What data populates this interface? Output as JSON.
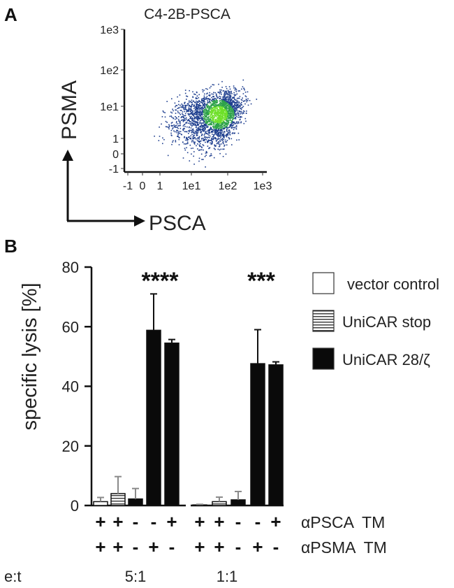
{
  "panels": {
    "a": "A",
    "b": "B"
  },
  "scatter": {
    "title": "C4-2B-PSCA",
    "xaxis_name": "PSCA",
    "yaxis_name": "PSMA",
    "xticks": [
      "-1",
      "0",
      "1",
      "1e1",
      "1e2",
      "1e3"
    ],
    "yticks": [
      "1e3",
      "1e2",
      "1e1",
      "1",
      "0",
      "-1"
    ],
    "colors": {
      "outer": "#1f3f8f",
      "inner": "#2ea24a",
      "core": "#6fe02a"
    }
  },
  "chart_data": [
    {
      "type": "scatter",
      "title": "C4-2B-PSCA",
      "xlabel": "PSCA",
      "ylabel": "PSMA",
      "xscale": "log",
      "yscale": "log",
      "xticks": [
        "-1",
        "0",
        "1",
        "1e1",
        "1e2",
        "1e3"
      ],
      "yticks": [
        "-1",
        "0",
        "1",
        "1e1",
        "1e2",
        "1e3"
      ],
      "density_center": {
        "x": 50,
        "y": 10
      }
    },
    {
      "type": "bar",
      "ylabel": "specific lysis [%]",
      "ylim": [
        0,
        80
      ],
      "yticks": [
        "0",
        "20",
        "40",
        "60",
        "80"
      ],
      "groups": [
        {
          "label": "5:1",
          "significance": "****",
          "bars": [
            {
              "series": "vector control",
              "value": 1.3,
              "error": 1.4,
              "apsca": "+",
              "apsma": "+"
            },
            {
              "series": "UniCAR stop",
              "value": 4.0,
              "error": 5.7,
              "apsca": "+",
              "apsma": "+"
            },
            {
              "series": "UniCAR 28/ζ",
              "value": 2.2,
              "error": 3.5,
              "apsca": "-",
              "apsma": "-"
            },
            {
              "series": "UniCAR 28/ζ",
              "value": 58.8,
              "error": 12.2,
              "apsca": "-",
              "apsma": "+"
            },
            {
              "series": "UniCAR 28/ζ",
              "value": 54.5,
              "error": 1.2,
              "apsca": "+",
              "apsma": "-"
            }
          ]
        },
        {
          "label": "1:1",
          "significance": "***",
          "bars": [
            {
              "series": "vector control",
              "value": 0.2,
              "error": 0.2,
              "apsca": "+",
              "apsma": "+"
            },
            {
              "series": "UniCAR stop",
              "value": 1.3,
              "error": 1.5,
              "apsca": "+",
              "apsma": "+"
            },
            {
              "series": "UniCAR 28/ζ",
              "value": 1.9,
              "error": 2.8,
              "apsca": "-",
              "apsma": "-"
            },
            {
              "series": "UniCAR 28/ζ",
              "value": 47.6,
              "error": 11.4,
              "apsca": "-",
              "apsma": "+"
            },
            {
              "series": "UniCAR 28/ζ",
              "value": 47.2,
              "error": 1.0,
              "apsca": "+",
              "apsma": "-"
            }
          ]
        }
      ],
      "legend": [
        {
          "label": "vector control",
          "style": "open"
        },
        {
          "label": "UniCAR stop",
          "style": "striped"
        },
        {
          "label": "UniCAR 28/ζ",
          "style": "filled"
        }
      ],
      "row_labels": [
        "αPSCA  TM",
        "αPSMA  TM"
      ],
      "et_label": "e:t",
      "colors": {
        "filled": "#0a0a0a",
        "open": "#ffffff",
        "stripe": "#111111",
        "gray": "#8a8a8a"
      }
    }
  ]
}
